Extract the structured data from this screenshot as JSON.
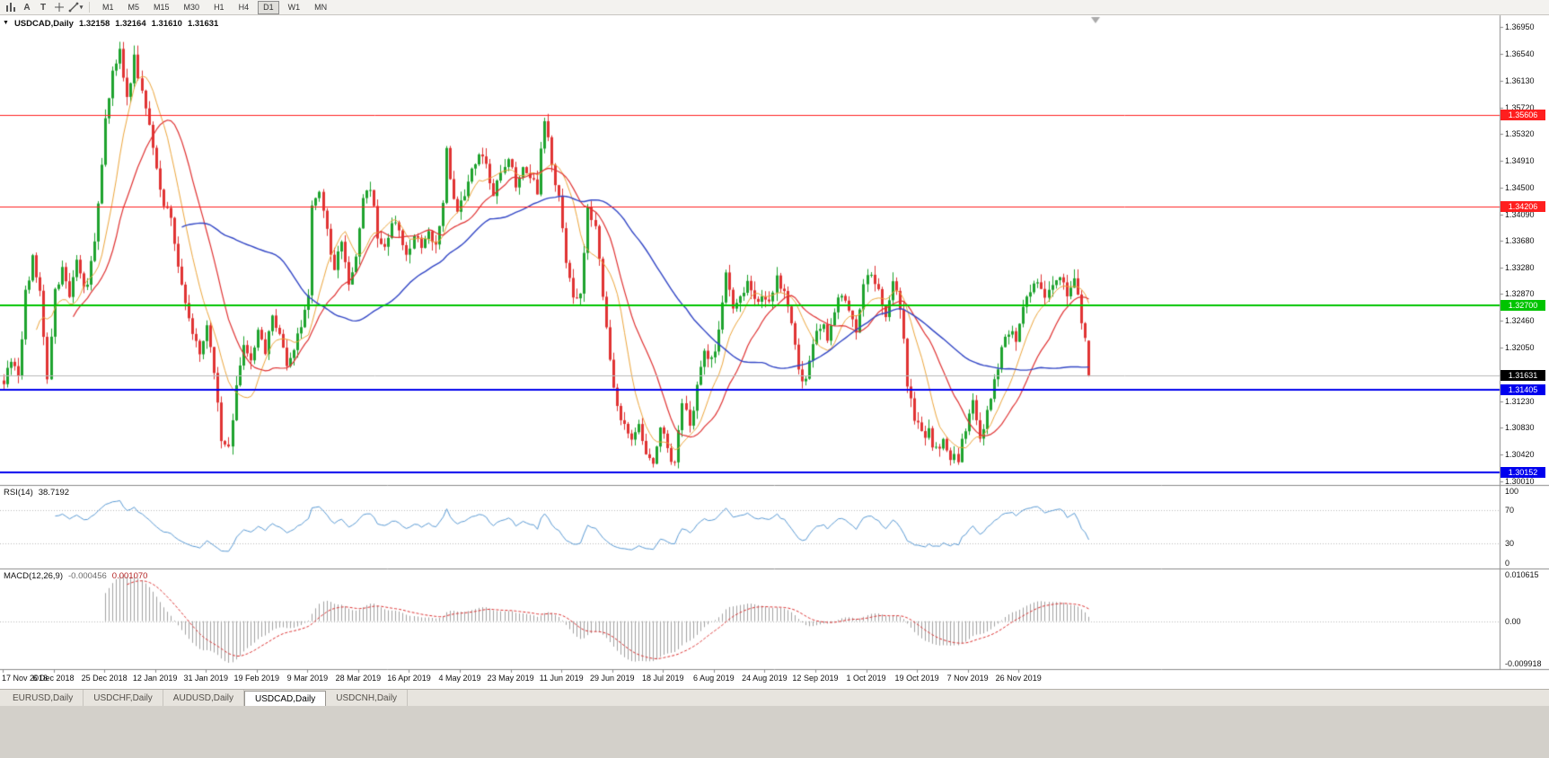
{
  "toolbar": {
    "tools": [
      {
        "name": "bar-chart-icon"
      },
      {
        "name": "cursor-tool",
        "label": "A"
      },
      {
        "name": "text-tool",
        "label": "T"
      },
      {
        "name": "crosshair-tool"
      },
      {
        "name": "draw-tool",
        "chevron": "▾"
      }
    ],
    "timeframes": [
      {
        "label": "M1",
        "active": false
      },
      {
        "label": "M5",
        "active": false
      },
      {
        "label": "M15",
        "active": false
      },
      {
        "label": "M30",
        "active": false
      },
      {
        "label": "H1",
        "active": false
      },
      {
        "label": "H4",
        "active": false
      },
      {
        "label": "D1",
        "active": true
      },
      {
        "label": "W1",
        "active": false
      },
      {
        "label": "MN",
        "active": false
      }
    ]
  },
  "chart": {
    "collapse_arrow": "▼",
    "symbol_label": "USDCAD,Daily",
    "ohlc": {
      "open": "1.32158",
      "high": "1.32164",
      "low": "1.31610",
      "close": "1.31631"
    }
  },
  "rsi_panel": {
    "name": "RSI(14)",
    "value": "38.7192",
    "axis_labels": [
      100,
      70,
      30,
      0
    ],
    "levels": [
      70,
      30
    ]
  },
  "macd_panel": {
    "name": "MACD(12,26,9)",
    "main_value": "-0.000456",
    "signal_value": "0.001070",
    "axis_top": "0.010615",
    "axis_zero": "0.00",
    "axis_bottom": "-0.009918"
  },
  "tabs": [
    {
      "label": "EURUSD,Daily",
      "active": false
    },
    {
      "label": "USDCHF,Daily",
      "active": false
    },
    {
      "label": "AUDUSD,Daily",
      "active": false
    },
    {
      "label": "USDCAD,Daily",
      "active": true
    },
    {
      "label": "USDCNH,Daily",
      "active": false
    }
  ],
  "colors": {
    "bull": "#1ea32e",
    "bear": "#e03333",
    "ma_fast": "#eda63c",
    "ma_mid": "#e03333",
    "ma_slow": "#3347c6",
    "res_line": "#ff1f1f",
    "sup_green": "#00c400",
    "sup_blue": "#0000ee",
    "bid_line": "#b9b9b9",
    "rsi_line": "#5b9bd5",
    "rsi_level": "#bcbcbc",
    "macd_hist": "#a2a2a2",
    "macd_signal": "#dd3030",
    "separator": "#8c8c8c",
    "tag_current_bg": "#000000"
  },
  "chart_data": {
    "type": "candlestick",
    "symbol": "USDCAD",
    "timeframe": "Daily",
    "ylim": [
      1.29955,
      1.37128
    ],
    "price_axis_labels": [
      "1.36950",
      "1.36540",
      "1.36130",
      "1.35720",
      "1.35320",
      "1.34910",
      "1.34500",
      "1.34090",
      "1.33680",
      "1.33280",
      "1.32870",
      "1.32460",
      "1.32050",
      "1.31640",
      "1.31230",
      "1.30830",
      "1.30420",
      "1.30010"
    ],
    "date_labels": [
      "17 Nov 2018",
      "6 Dec 2018",
      "25 Dec 2018",
      "12 Jan 2019",
      "31 Jan 2019",
      "19 Feb 2019",
      "9 Mar 2019",
      "28 Mar 2019",
      "16 Apr 2019",
      "4 May 2019",
      "23 May 2019",
      "11 Jun 2019",
      "29 Jun 2019",
      "18 Jul 2019",
      "6 Aug 2019",
      "24 Aug 2019",
      "12 Sep 2019",
      "1 Oct 2019",
      "19 Oct 2019",
      "7 Nov 2019",
      "26 Nov 2019"
    ],
    "label_every": 14,
    "candle_count": 300,
    "seed": 20191206,
    "noise": 0.0018,
    "wick": 0.0014,
    "price_path": [
      [
        0,
        1.3155
      ],
      [
        2,
        1.3185
      ],
      [
        4,
        1.316
      ],
      [
        6,
        1.329
      ],
      [
        8,
        1.334
      ],
      [
        10,
        1.329
      ],
      [
        12,
        1.3165
      ],
      [
        14,
        1.329
      ],
      [
        16,
        1.333
      ],
      [
        18,
        1.328
      ],
      [
        20,
        1.3335
      ],
      [
        22,
        1.329
      ],
      [
        24,
        1.333
      ],
      [
        26,
        1.342
      ],
      [
        28,
        1.3555
      ],
      [
        30,
        1.362
      ],
      [
        32,
        1.3655
      ],
      [
        34,
        1.3585
      ],
      [
        36,
        1.365
      ],
      [
        38,
        1.36
      ],
      [
        40,
        1.354
      ],
      [
        42,
        1.3475
      ],
      [
        44,
        1.343
      ],
      [
        46,
        1.34
      ],
      [
        48,
        1.3335
      ],
      [
        50,
        1.328
      ],
      [
        52,
        1.3225
      ],
      [
        54,
        1.32
      ],
      [
        56,
        1.3235
      ],
      [
        58,
        1.316
      ],
      [
        60,
        1.307
      ],
      [
        62,
        1.3055
      ],
      [
        64,
        1.315
      ],
      [
        66,
        1.321
      ],
      [
        68,
        1.318
      ],
      [
        70,
        1.323
      ],
      [
        72,
        1.32
      ],
      [
        74,
        1.325
      ],
      [
        76,
        1.322
      ],
      [
        78,
        1.3175
      ],
      [
        80,
        1.321
      ],
      [
        82,
        1.324
      ],
      [
        84,
        1.328
      ],
      [
        85,
        1.342
      ],
      [
        87,
        1.344
      ],
      [
        89,
        1.338
      ],
      [
        91,
        1.333
      ],
      [
        93,
        1.3365
      ],
      [
        95,
        1.3305
      ],
      [
        97,
        1.335
      ],
      [
        99,
        1.343
      ],
      [
        101,
        1.3445
      ],
      [
        103,
        1.338
      ],
      [
        105,
        1.3355
      ],
      [
        107,
        1.34
      ],
      [
        109,
        1.3385
      ],
      [
        111,
        1.3345
      ],
      [
        113,
        1.3375
      ],
      [
        115,
        1.3355
      ],
      [
        117,
        1.339
      ],
      [
        119,
        1.336
      ],
      [
        121,
        1.343
      ],
      [
        122,
        1.351
      ],
      [
        123,
        1.3465
      ],
      [
        125,
        1.3415
      ],
      [
        127,
        1.344
      ],
      [
        129,
        1.347
      ],
      [
        131,
        1.3505
      ],
      [
        133,
        1.348
      ],
      [
        135,
        1.3445
      ],
      [
        137,
        1.348
      ],
      [
        139,
        1.3495
      ],
      [
        141,
        1.3455
      ],
      [
        143,
        1.348
      ],
      [
        145,
        1.3462
      ],
      [
        147,
        1.3448
      ],
      [
        149,
        1.3555
      ],
      [
        151,
        1.349
      ],
      [
        153,
        1.343
      ],
      [
        155,
        1.334
      ],
      [
        157,
        1.329
      ],
      [
        159,
        1.328
      ],
      [
        160,
        1.335
      ],
      [
        161,
        1.342
      ],
      [
        163,
        1.339
      ],
      [
        165,
        1.329
      ],
      [
        167,
        1.318
      ],
      [
        169,
        1.312
      ],
      [
        171,
        1.3085
      ],
      [
        173,
        1.3062
      ],
      [
        175,
        1.309
      ],
      [
        177,
        1.3042
      ],
      [
        179,
        1.3022
      ],
      [
        181,
        1.3088
      ],
      [
        183,
        1.3048
      ],
      [
        185,
        1.3028
      ],
      [
        187,
        1.3122
      ],
      [
        189,
        1.3082
      ],
      [
        191,
        1.3142
      ],
      [
        193,
        1.3205
      ],
      [
        195,
        1.3182
      ],
      [
        197,
        1.3232
      ],
      [
        199,
        1.3322
      ],
      [
        201,
        1.3262
      ],
      [
        203,
        1.3282
      ],
      [
        205,
        1.3312
      ],
      [
        207,
        1.3272
      ],
      [
        209,
        1.3292
      ],
      [
        211,
        1.3272
      ],
      [
        213,
        1.3312
      ],
      [
        215,
        1.3292
      ],
      [
        217,
        1.3242
      ],
      [
        219,
        1.3172
      ],
      [
        221,
        1.3152
      ],
      [
        223,
        1.3202
      ],
      [
        225,
        1.3242
      ],
      [
        227,
        1.3222
      ],
      [
        229,
        1.3262
      ],
      [
        231,
        1.3292
      ],
      [
        233,
        1.3262
      ],
      [
        235,
        1.3232
      ],
      [
        237,
        1.3295
      ],
      [
        239,
        1.332
      ],
      [
        241,
        1.329
      ],
      [
        243,
        1.325
      ],
      [
        245,
        1.33
      ],
      [
        247,
        1.327
      ],
      [
        249,
        1.315
      ],
      [
        251,
        1.31
      ],
      [
        253,
        1.307
      ],
      [
        255,
        1.3075
      ],
      [
        257,
        1.3045
      ],
      [
        259,
        1.307
      ],
      [
        261,
        1.304
      ],
      [
        263,
        1.3035
      ],
      [
        265,
        1.308
      ],
      [
        267,
        1.312
      ],
      [
        269,
        1.306
      ],
      [
        271,
        1.311
      ],
      [
        273,
        1.316
      ],
      [
        275,
        1.32
      ],
      [
        277,
        1.323
      ],
      [
        279,
        1.3215
      ],
      [
        281,
        1.326
      ],
      [
        283,
        1.3295
      ],
      [
        285,
        1.331
      ],
      [
        287,
        1.329
      ],
      [
        289,
        1.3305
      ],
      [
        291,
        1.3315
      ],
      [
        293,
        1.329
      ],
      [
        295,
        1.3305
      ],
      [
        297,
        1.325
      ],
      [
        298,
        1.3216
      ],
      [
        299,
        1.31631
      ]
    ],
    "last_candle": {
      "open": 1.32158,
      "high": 1.32164,
      "low": 1.3161,
      "close": 1.31631
    },
    "moving_averages": [
      {
        "period": 10,
        "color_key": "ma_fast",
        "width": 1
      },
      {
        "period": 20,
        "color_key": "ma_mid",
        "width": 1.2
      },
      {
        "period": 50,
        "color_key": "ma_slow",
        "width": 1.4
      }
    ],
    "horizontal_lines": [
      {
        "value": 1.35606,
        "label": "1.35606",
        "type": "resistance",
        "color_key": "res_line",
        "width": 1
      },
      {
        "value": 1.34206,
        "label": "1.34206",
        "type": "resistance",
        "color_key": "res_line",
        "width": 1
      },
      {
        "value": 1.327,
        "label": "1.32700",
        "type": "level",
        "color_key": "sup_green",
        "width": 2
      },
      {
        "value": 1.31405,
        "label": "1.31405",
        "type": "support",
        "color_key": "sup_blue",
        "width": 2
      },
      {
        "value": 1.30152,
        "label": "1.30152",
        "type": "support",
        "color_key": "sup_blue",
        "width": 2
      }
    ],
    "current_price": {
      "value": 1.31631,
      "label": "1.31631"
    },
    "rsi": {
      "period": 14,
      "current": 38.7192
    },
    "macd": {
      "fast": 12,
      "slow": 26,
      "signal": 9,
      "current_main": -0.000456,
      "current_signal": 0.00107
    }
  }
}
